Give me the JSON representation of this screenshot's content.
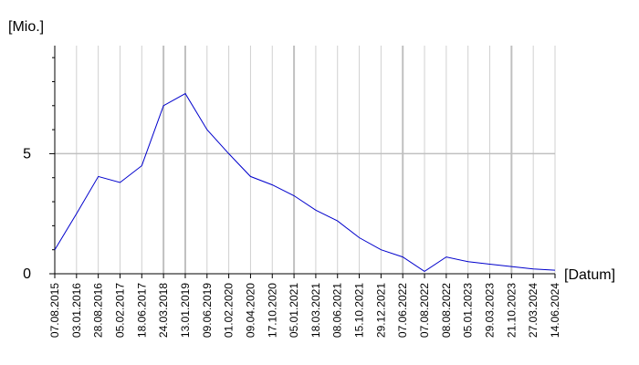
{
  "chart_data": {
    "type": "line",
    "ylabel": "[Mio.]",
    "xlabel": "[Datum]",
    "ylim": [
      0,
      9.5
    ],
    "y_ticks": [
      0,
      5
    ],
    "y_tick_labels": [
      "0",
      "5"
    ],
    "grid": true,
    "colors": {
      "line": "#0000cc",
      "major_grid": "#c0c0c0",
      "minor_grid": "#d0d0d0",
      "axis": "#000000"
    },
    "x_tick_labels": [
      "07.08.2015",
      "03.01.2016",
      "28.08.2016",
      "05.02.2017",
      "18.06.2017",
      "24.03.2018",
      "13.01.2019",
      "09.06.2019",
      "01.02.2020",
      "09.04.2020",
      "17.10.2020",
      "05.01.2021",
      "18.03.2021",
      "08.06.2021",
      "15.10.2021",
      "29.12.2021",
      "07.06.2022",
      "07.08.2022",
      "08.08.2022",
      "05.01.2023",
      "29.03.2023",
      "21.10.2023",
      "27.03.2024",
      "14.06.2024"
    ],
    "major_grid_tick_indices": [
      5,
      6,
      11,
      16,
      21
    ],
    "series": [
      {
        "values": [
          1.0,
          2.5,
          4.05,
          3.8,
          4.5,
          7.0,
          7.5,
          6.0,
          5.0,
          4.05,
          3.7,
          3.25,
          2.65,
          2.2,
          1.5,
          1.0,
          0.7,
          0.1,
          0.7,
          0.5,
          0.4,
          0.3,
          0.2,
          0.15
        ]
      }
    ]
  }
}
